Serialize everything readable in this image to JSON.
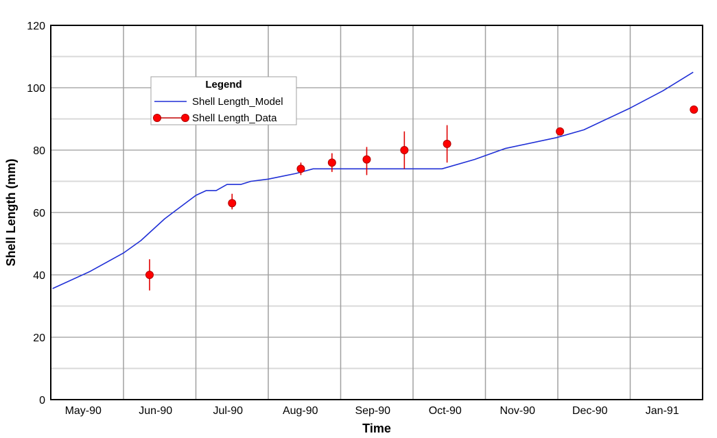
{
  "chart_data": {
    "type": "line",
    "title": "",
    "xlabel": "Time",
    "ylabel": "Shell Length (mm)",
    "ylim": [
      0,
      120
    ],
    "yticks": [
      0,
      20,
      40,
      60,
      80,
      100,
      120
    ],
    "x_tick_labels": [
      "May-90",
      "Jun-90",
      "Jul-90",
      "Aug-90",
      "Sep-90",
      "Oct-90",
      "Nov-90",
      "Dec-90",
      "Jan-91"
    ],
    "grid": true,
    "legend": {
      "title": "Legend",
      "position": "upper-left-inside",
      "entries": [
        "Shell Length_Model",
        "Shell Length_Data"
      ]
    },
    "series": [
      {
        "name": "Shell Length_Model",
        "style": "line",
        "color": "#1f2fd6",
        "points": [
          {
            "t": "May-90 start",
            "x": 0.02,
            "y": 35.6
          },
          {
            "x": 0.53,
            "y": 41
          },
          {
            "x": 1.0,
            "y": 47
          },
          {
            "x": 1.24,
            "y": 51
          },
          {
            "x": 1.57,
            "y": 58
          },
          {
            "x": 2.0,
            "y": 65.5
          },
          {
            "x": 2.14,
            "y": 67
          },
          {
            "x": 2.28,
            "y": 67
          },
          {
            "x": 2.43,
            "y": 69
          },
          {
            "x": 2.62,
            "y": 69
          },
          {
            "x": 2.76,
            "y": 70
          },
          {
            "x": 3.0,
            "y": 70.7
          },
          {
            "x": 3.38,
            "y": 72.5
          },
          {
            "x": 3.62,
            "y": 74
          },
          {
            "x": 4.05,
            "y": 74
          },
          {
            "x": 5.0,
            "y": 74
          },
          {
            "x": 5.4,
            "y": 74
          },
          {
            "x": 5.85,
            "y": 77
          },
          {
            "x": 6.27,
            "y": 80.5
          },
          {
            "x": 6.98,
            "y": 84
          },
          {
            "x": 7.36,
            "y": 86.5
          },
          {
            "x": 8.0,
            "y": 93.5
          },
          {
            "x": 8.45,
            "y": 99
          },
          {
            "x": 8.87,
            "y": 105
          }
        ]
      },
      {
        "name": "Shell Length_Data",
        "style": "marker-with-errorbars",
        "color": "#ff0000",
        "points": [
          {
            "x": 1.36,
            "y": 40,
            "err_low": 35,
            "err_high": 45
          },
          {
            "x": 2.5,
            "y": 63,
            "err_low": 61,
            "err_high": 66
          },
          {
            "x": 3.45,
            "y": 74,
            "err_low": 72,
            "err_high": 76
          },
          {
            "x": 3.88,
            "y": 76,
            "err_low": 73,
            "err_high": 79
          },
          {
            "x": 4.36,
            "y": 77,
            "err_low": 72,
            "err_high": 81
          },
          {
            "x": 4.88,
            "y": 80,
            "err_low": 74,
            "err_high": 86
          },
          {
            "x": 5.47,
            "y": 82,
            "err_low": 76,
            "err_high": 88
          },
          {
            "x": 7.03,
            "y": 86,
            "err_low": 85,
            "err_high": 87
          },
          {
            "x": 8.88,
            "y": 93,
            "err_low": 93,
            "err_high": 93
          }
        ]
      }
    ]
  },
  "colors": {
    "model_line": "#1f2fd6",
    "data_marker": "#ff0000",
    "grid_major": "#808080",
    "grid_minor": "#d9d9d9",
    "frame": "#000000"
  }
}
